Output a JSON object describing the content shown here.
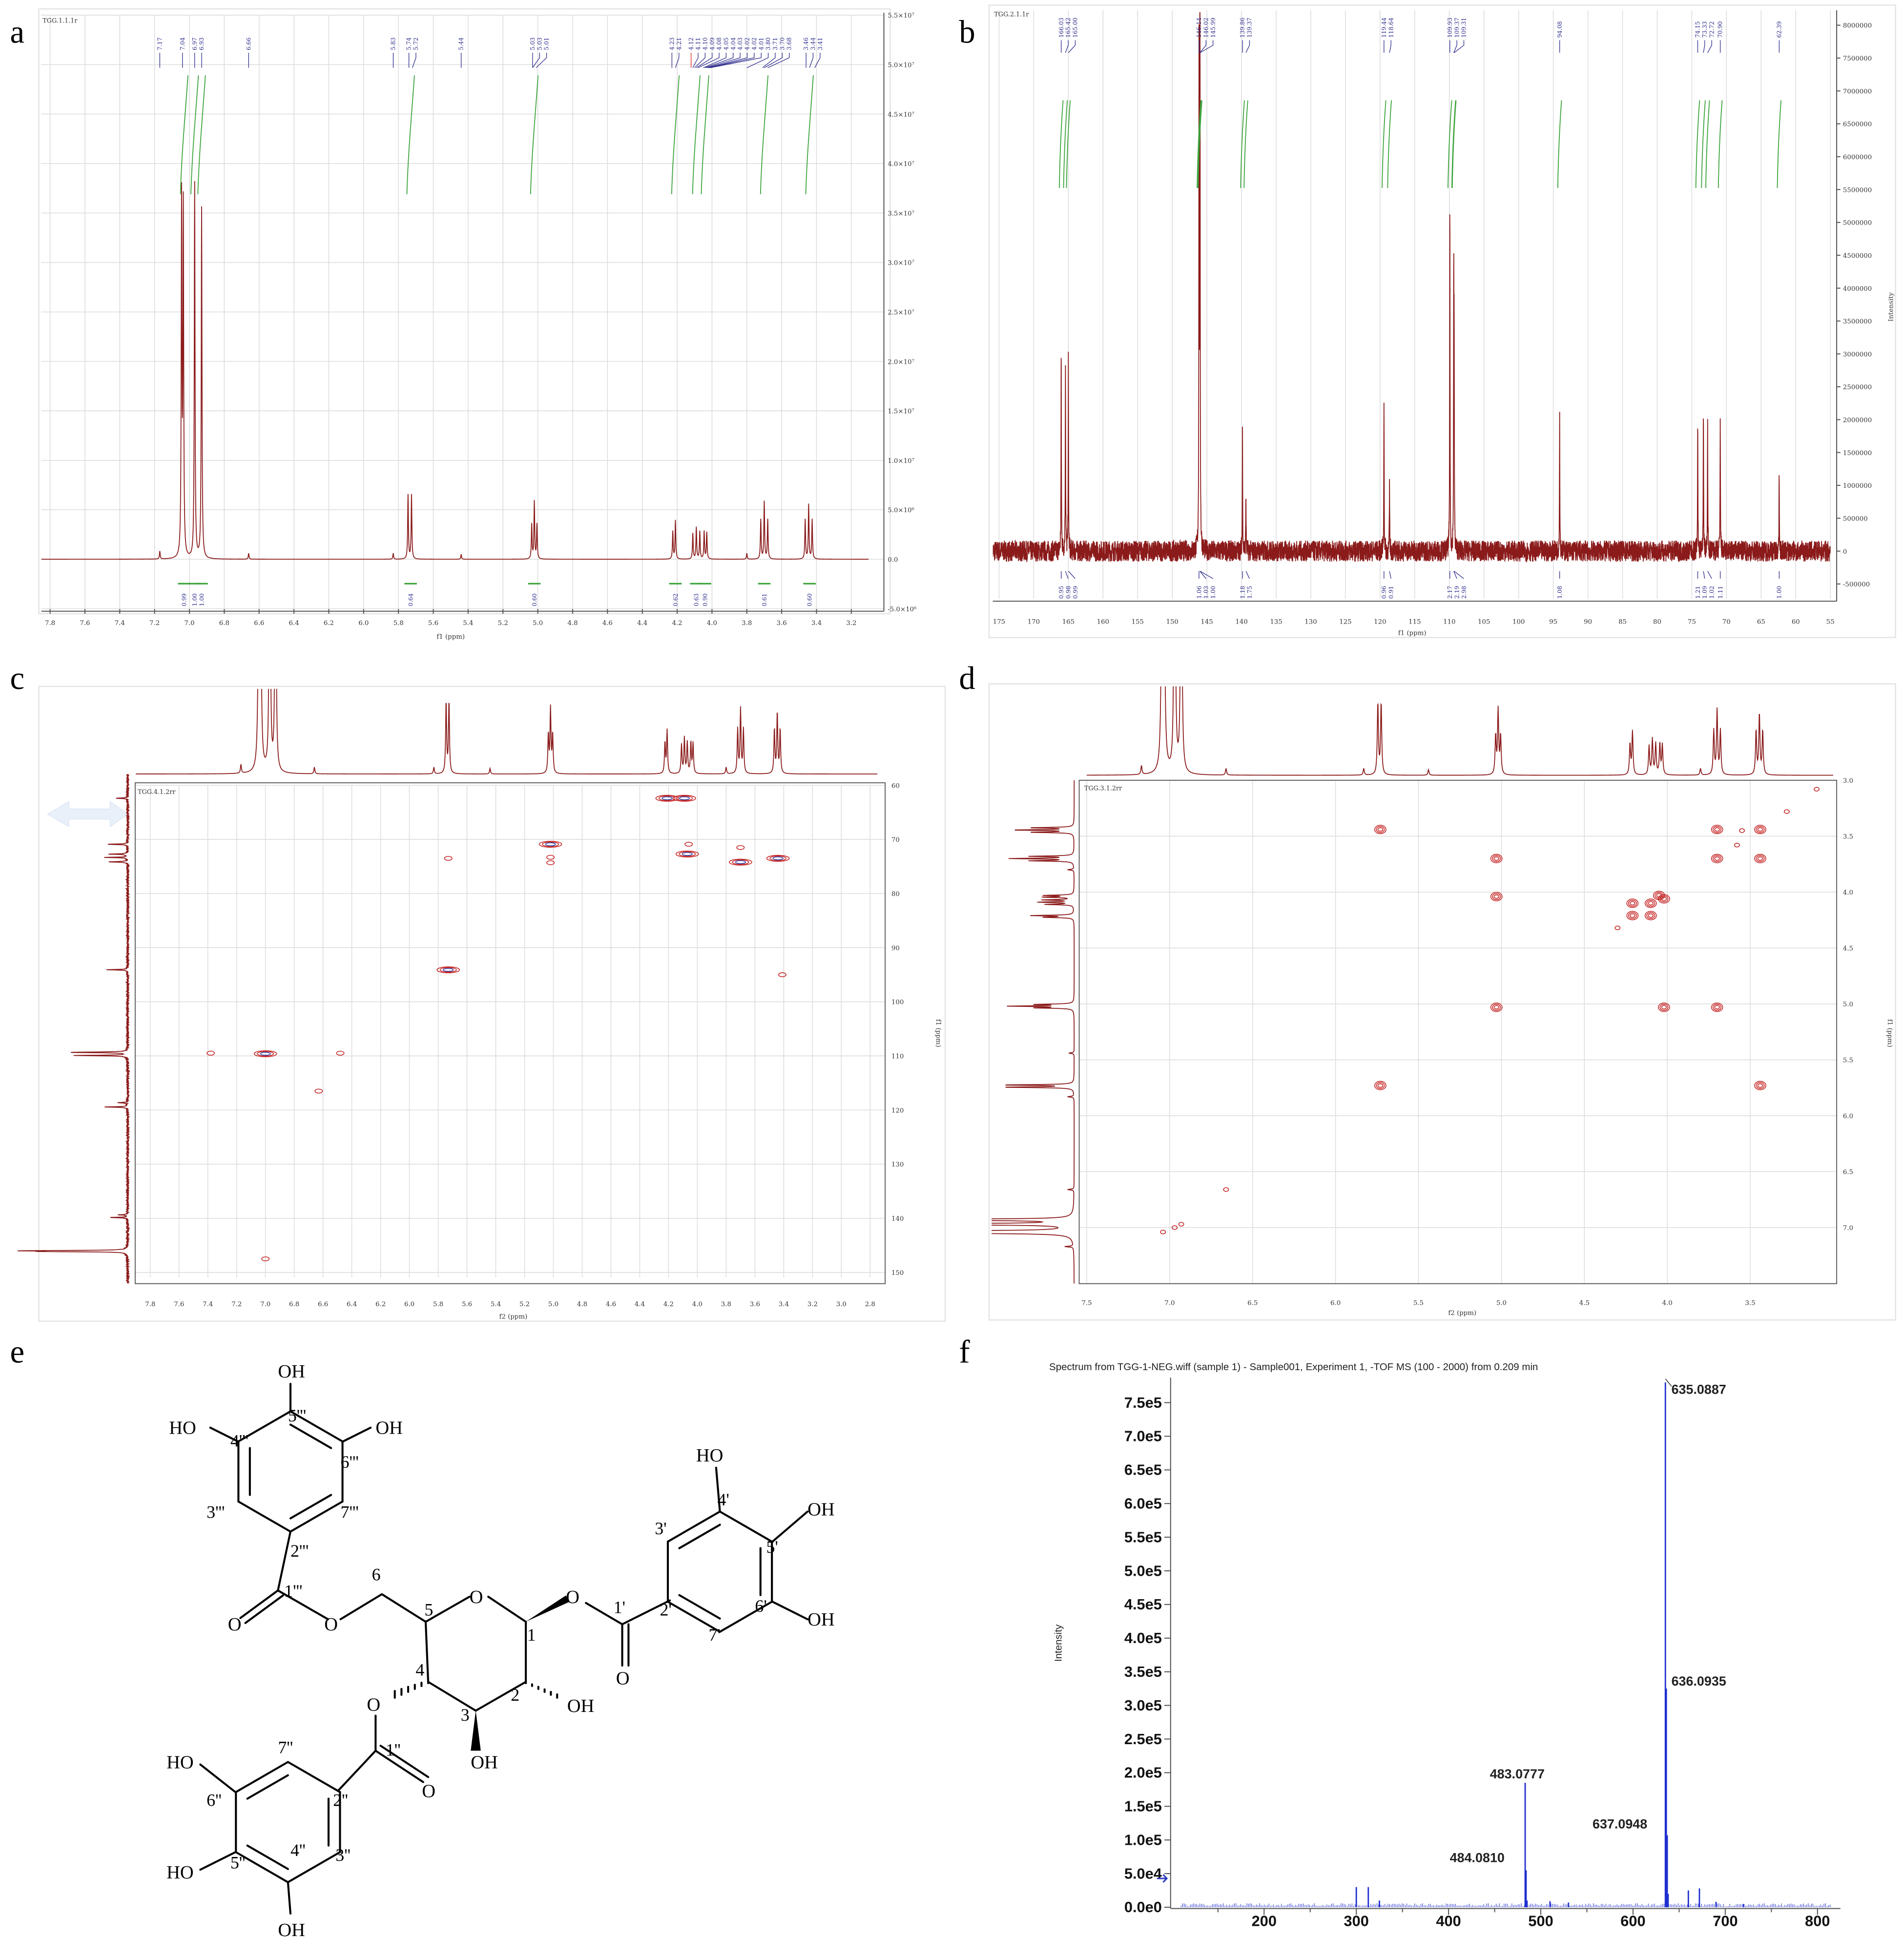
{
  "panel_labels": [
    "a",
    "b",
    "c",
    "d",
    "e",
    "f"
  ],
  "chart_data": [
    {
      "id": "a",
      "type": "line",
      "experiment": "1H NMR",
      "title": "TGG.1.1.1r",
      "xlabel": "f1 (ppm)",
      "xlim": [
        7.85,
        3.1
      ],
      "ylim": [
        -5000000,
        55000000
      ],
      "grid": true,
      "xticks": [
        "7.8",
        "7.6",
        "7.4",
        "7.2",
        "7.0",
        "6.8",
        "6.6",
        "6.4",
        "6.2",
        "6.0",
        "5.8",
        "5.6",
        "5.4",
        "5.2",
        "5.0",
        "4.8",
        "4.6",
        "4.4",
        "4.2",
        "4.0",
        "3.8",
        "3.6",
        "3.4",
        "3.2"
      ],
      "yticks": [
        {
          "v": 55000000,
          "label": "5.5×10⁷"
        },
        {
          "v": 50000000,
          "label": "5.0×10⁷"
        },
        {
          "v": 45000000,
          "label": "4.5×10⁷"
        },
        {
          "v": 40000000,
          "label": "4.0×10⁷"
        },
        {
          "v": 35000000,
          "label": "3.5×10⁷"
        },
        {
          "v": 30000000,
          "label": "3.0×10⁷"
        },
        {
          "v": 25000000,
          "label": "2.5×10⁷"
        },
        {
          "v": 20000000,
          "label": "2.0×10⁷"
        },
        {
          "v": 15000000,
          "label": "1.5×10⁷"
        },
        {
          "v": 10000000,
          "label": "1.0×10⁷"
        },
        {
          "v": 5000000,
          "label": "5.0×10⁶"
        },
        {
          "v": 0,
          "label": "0.0"
        },
        {
          "v": -5000000,
          "label": "-5.0×10⁶"
        }
      ],
      "peaks": [
        [
          7.17,
          800000
        ],
        [
          7.045,
          36000000
        ],
        [
          7.035,
          35000000
        ],
        [
          6.97,
          38000000
        ],
        [
          6.93,
          35500000
        ],
        [
          6.66,
          600000
        ],
        [
          5.83,
          600000
        ],
        [
          5.745,
          6500000
        ],
        [
          5.725,
          6500000
        ],
        [
          5.44,
          500000
        ],
        [
          5.035,
          3500000
        ],
        [
          5.02,
          5800000
        ],
        [
          5.005,
          3500000
        ],
        [
          4.225,
          2800000
        ],
        [
          4.21,
          3900000
        ],
        [
          4.11,
          2600000
        ],
        [
          4.09,
          3200000
        ],
        [
          4.07,
          2800000
        ],
        [
          4.045,
          2800000
        ],
        [
          4.03,
          2700000
        ],
        [
          3.8,
          600000
        ],
        [
          3.72,
          4000000
        ],
        [
          3.7,
          5800000
        ],
        [
          3.68,
          4000000
        ],
        [
          3.465,
          4000000
        ],
        [
          3.445,
          5500000
        ],
        [
          3.425,
          4000000
        ]
      ],
      "peak_labels": [
        "7.17",
        "7.04",
        "6.97",
        "6.93",
        "6.66",
        "5.83",
        "5.74",
        "5.72",
        "5.44",
        "5.03",
        "5.03",
        "5.01",
        "4.23",
        "4.21",
        "4.12",
        "4.11",
        "4.10",
        "4.09",
        "4.08",
        "4.05",
        "4.04",
        "4.03",
        "4.02",
        "4.02",
        "4.01",
        "3.80",
        "3.71",
        "3.70",
        "3.68",
        "3.46",
        "3.44",
        "3.41"
      ],
      "highlight_label": "4.12",
      "integrals": [
        [
          7.03,
          "0.99"
        ],
        [
          6.97,
          "1.00"
        ],
        [
          6.93,
          "1.00"
        ],
        [
          5.73,
          "0.64"
        ],
        [
          5.02,
          "0.60"
        ],
        [
          4.21,
          "0.62"
        ],
        [
          4.09,
          "0.63"
        ],
        [
          4.04,
          "0.90"
        ],
        [
          3.7,
          "0.61"
        ],
        [
          3.44,
          "0.60"
        ]
      ]
    },
    {
      "id": "b",
      "type": "line",
      "experiment": "13C NMR",
      "title": "TGG.2.1.1r",
      "xlabel": "f1 (ppm)",
      "ylabel": "Intensity",
      "xlim": [
        176,
        55
      ],
      "ylim": [
        -500000,
        8000000
      ],
      "grid": true,
      "xticks": [
        "175",
        "170",
        "165",
        "160",
        "155",
        "150",
        "145",
        "140",
        "135",
        "130",
        "125",
        "120",
        "115",
        "110",
        "105",
        "100",
        "95",
        "90",
        "85",
        "80",
        "75",
        "70",
        "65",
        "60",
        "55"
      ],
      "yticks": [
        "8000000",
        "7500000",
        "7000000",
        "6500000",
        "6000000",
        "5500000",
        "5000000",
        "4500000",
        "4000000",
        "3500000",
        "3000000",
        "2500000",
        "2000000",
        "1500000",
        "1000000",
        "500000",
        "0",
        "-500000"
      ],
      "peaks": [
        [
          166.03,
          3100000
        ],
        [
          165.42,
          2900000
        ],
        [
          165.0,
          2900000
        ],
        [
          146.14,
          7600000
        ],
        [
          146.02,
          5500000
        ],
        [
          145.99,
          5300000
        ],
        [
          139.86,
          1800000
        ],
        [
          139.37,
          900000
        ],
        [
          119.44,
          2350000
        ],
        [
          118.64,
          1000000
        ],
        [
          109.93,
          5500000
        ],
        [
          109.37,
          4000000
        ],
        [
          109.31,
          3000000
        ],
        [
          94.08,
          2100000
        ],
        [
          74.15,
          2050000
        ],
        [
          73.33,
          2250000
        ],
        [
          72.72,
          1900000
        ],
        [
          70.9,
          2100000
        ],
        [
          62.39,
          1250000
        ]
      ],
      "peak_labels": [
        "166.03",
        "165.42",
        "165.00",
        "146.14",
        "146.02",
        "145.99",
        "139.86",
        "139.37",
        "119.44",
        "118.64",
        "109.93",
        "109.37",
        "109.31",
        "94.08",
        "74.15",
        "73.33",
        "72.72",
        "70.90",
        "62.39"
      ],
      "integrals": [
        [
          166.03,
          "0.95"
        ],
        [
          165.42,
          "0.98"
        ],
        [
          165.0,
          "0.99"
        ],
        [
          146.14,
          "1.06"
        ],
        [
          146.02,
          "1.03"
        ],
        [
          145.99,
          "1.00"
        ],
        [
          139.86,
          "1.18"
        ],
        [
          139.37,
          "1.75"
        ],
        [
          119.44,
          "0.96"
        ],
        [
          118.64,
          "0.91"
        ],
        [
          109.93,
          "2.17"
        ],
        [
          109.37,
          "2.19"
        ],
        [
          109.31,
          "2.98"
        ],
        [
          94.08,
          "1.08"
        ],
        [
          74.15,
          "1.21"
        ],
        [
          73.33,
          "1.09"
        ],
        [
          72.72,
          "1.02"
        ],
        [
          70.9,
          "1.11"
        ],
        [
          62.39,
          "1.00"
        ]
      ]
    },
    {
      "id": "c",
      "type": "heatmap",
      "experiment": "HSQC",
      "title": "TGG.4.1.2rr",
      "xlabel": "f2 (ppm)",
      "ylabel": "f1 (ppm)",
      "xlim": [
        7.9,
        2.75
      ],
      "ylim": [
        60,
        152
      ],
      "xticks": [
        "7.8",
        "7.6",
        "7.4",
        "7.2",
        "7.0",
        "6.8",
        "6.6",
        "6.4",
        "6.2",
        "6.0",
        "5.8",
        "5.6",
        "5.4",
        "5.2",
        "5.0",
        "4.8",
        "4.6",
        "4.4",
        "4.2",
        "4.0",
        "3.8",
        "3.6",
        "3.4",
        "3.2",
        "3.0",
        "2.8"
      ],
      "yticks": [
        "60",
        "70",
        "80",
        "90",
        "100",
        "110",
        "120",
        "130",
        "140",
        "150"
      ],
      "cross_peaks": [
        [
          4.21,
          62.4,
          "strong"
        ],
        [
          4.09,
          62.4,
          "strong"
        ],
        [
          5.02,
          70.9,
          "strong"
        ],
        [
          5.02,
          73.3,
          "weak"
        ],
        [
          5.02,
          74.3,
          "weak"
        ],
        [
          4.07,
          72.7,
          "strong"
        ],
        [
          4.06,
          70.9,
          "weak"
        ],
        [
          3.7,
          74.2,
          "strong"
        ],
        [
          3.7,
          71.5,
          "weak"
        ],
        [
          3.44,
          73.5,
          "strong"
        ],
        [
          5.73,
          73.5,
          "weak"
        ],
        [
          5.73,
          94.1,
          "strong"
        ],
        [
          7.0,
          109.6,
          "strong"
        ],
        [
          7.38,
          109.5,
          "weak"
        ],
        [
          6.63,
          116.5,
          "weak"
        ],
        [
          6.48,
          109.5,
          "weak"
        ],
        [
          7.0,
          147.5,
          "weak"
        ],
        [
          3.41,
          95,
          "weak"
        ]
      ]
    },
    {
      "id": "d",
      "type": "heatmap",
      "experiment": "1H-1H COSY",
      "title": "TGG.3.1.2rr",
      "xlabel": "f2 (ppm)",
      "ylabel": "f1 (ppm)",
      "xlim": [
        7.5,
        3.0
      ],
      "ylim": [
        3.0,
        7.5
      ],
      "xticks": [
        "7.5",
        "7.0",
        "6.5",
        "6.0",
        "5.5",
        "5.0",
        "4.5",
        "4.0",
        "3.5"
      ],
      "yticks": [
        "3.0",
        "3.5",
        "4.0",
        "4.5",
        "5.0",
        "5.5",
        "6.0",
        "6.5",
        "7.0"
      ],
      "cross_peaks": [
        [
          5.73,
          3.44,
          "strong"
        ],
        [
          5.03,
          3.7,
          "strong"
        ],
        [
          5.03,
          4.04,
          "strong"
        ],
        [
          5.03,
          5.03,
          "strong"
        ],
        [
          4.02,
          5.03,
          "strong"
        ],
        [
          3.7,
          5.03,
          "strong"
        ],
        [
          5.73,
          5.73,
          "strong"
        ],
        [
          3.44,
          5.73,
          "strong"
        ],
        [
          3.7,
          3.44,
          "strong"
        ],
        [
          3.44,
          3.44,
          "strong"
        ],
        [
          3.7,
          3.7,
          "strong"
        ],
        [
          3.44,
          3.7,
          "strong"
        ],
        [
          4.21,
          4.1,
          "strong"
        ],
        [
          4.21,
          4.21,
          "strong"
        ],
        [
          4.1,
          4.21,
          "strong"
        ],
        [
          4.1,
          4.1,
          "strong"
        ],
        [
          4.05,
          4.03,
          "strong"
        ],
        [
          4.02,
          4.06,
          "strong"
        ],
        [
          4.3,
          4.32,
          "weak"
        ],
        [
          3.55,
          3.45,
          "weak"
        ],
        [
          3.58,
          3.58,
          "weak"
        ],
        [
          3.28,
          3.28,
          "weak"
        ],
        [
          3.1,
          3.08,
          "weak"
        ],
        [
          6.66,
          6.66,
          "weak"
        ],
        [
          7.04,
          7.04,
          "weak"
        ],
        [
          6.97,
          7.0,
          "weak"
        ],
        [
          6.93,
          6.97,
          "weak"
        ]
      ]
    },
    {
      "id": "f",
      "type": "bar",
      "experiment": "HR-ESI-MS (negative)",
      "title": "Spectrum from TGG-1-NEG.wiff (sample 1) - Sample001, Experiment 1, -TOF MS (100 - 2000) from 0.209 min",
      "ylabel": "Intensity",
      "xlim": [
        100,
        820
      ],
      "ylim": [
        0,
        790000
      ],
      "xticks": [
        "200",
        "300",
        "400",
        "500",
        "600",
        "700",
        "800"
      ],
      "yticks": [
        "0.0e0",
        "5.0e4",
        "1.0e5",
        "1.5e5",
        "2.0e5",
        "2.5e5",
        "3.0e5",
        "3.5e5",
        "4.0e5",
        "4.5e5",
        "5.0e5",
        "5.5e5",
        "6.0e5",
        "6.5e5",
        "7.0e5",
        "7.5e5"
      ],
      "peaks": [
        [
          300.0,
          30000
        ],
        [
          313.0,
          30000
        ],
        [
          325.0,
          10000
        ],
        [
          483.0777,
          185000
        ],
        [
          484.081,
          55000
        ],
        [
          485.1,
          10000
        ],
        [
          510.0,
          9000
        ],
        [
          530.0,
          7000
        ],
        [
          635.0887,
          780000
        ],
        [
          636.0935,
          325000
        ],
        [
          637.0948,
          107000
        ],
        [
          638.1,
          20000
        ],
        [
          660.0,
          25000
        ],
        [
          672.0,
          28000
        ],
        [
          690.0,
          8000
        ],
        [
          720.0,
          5000
        ]
      ],
      "labeled_peaks": [
        "635.0887",
        "636.0935",
        "483.0777",
        "637.0948",
        "484.0810"
      ]
    }
  ],
  "structure": {
    "labels": [
      "OH",
      "HO",
      "OH",
      "5'''",
      "4'''",
      "6'''",
      "3'''",
      "7'''",
      "2'''",
      "1'''",
      "O",
      "O",
      "6",
      "5",
      "O",
      "1",
      "O",
      "1'",
      "O",
      "2'",
      "3'",
      "4'",
      "5'",
      "6'",
      "7'",
      "HO",
      "OH",
      "OH",
      "4",
      "3",
      "2",
      "OH",
      "OH",
      "O",
      "1''",
      "O",
      "2''",
      "7''",
      "6''",
      "5''",
      "4''",
      "3''",
      "HO",
      "HO",
      "OH"
    ]
  }
}
